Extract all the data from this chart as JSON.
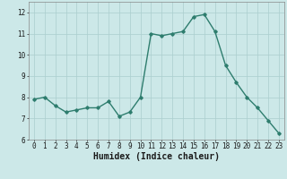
{
  "x": [
    0,
    1,
    2,
    3,
    4,
    5,
    6,
    7,
    8,
    9,
    10,
    11,
    12,
    13,
    14,
    15,
    16,
    17,
    18,
    19,
    20,
    21,
    22,
    23
  ],
  "y": [
    7.9,
    8.0,
    7.6,
    7.3,
    7.4,
    7.5,
    7.5,
    7.8,
    7.1,
    7.3,
    8.0,
    11.0,
    10.9,
    11.0,
    11.1,
    11.8,
    11.9,
    11.1,
    9.5,
    8.7,
    8.0,
    7.5,
    6.9,
    6.3
  ],
  "line_color": "#2e7d6e",
  "marker": "D",
  "marker_size": 1.8,
  "bg_color": "#cce8e8",
  "grid_color": "#aacece",
  "xlabel": "Humidex (Indice chaleur)",
  "ylim": [
    6,
    12.5
  ],
  "xlim": [
    -0.5,
    23.5
  ],
  "yticks": [
    6,
    7,
    8,
    9,
    10,
    11,
    12
  ],
  "xticks": [
    0,
    1,
    2,
    3,
    4,
    5,
    6,
    7,
    8,
    9,
    10,
    11,
    12,
    13,
    14,
    15,
    16,
    17,
    18,
    19,
    20,
    21,
    22,
    23
  ],
  "tick_fontsize": 5.5,
  "xlabel_fontsize": 7.0,
  "linewidth": 1.0
}
